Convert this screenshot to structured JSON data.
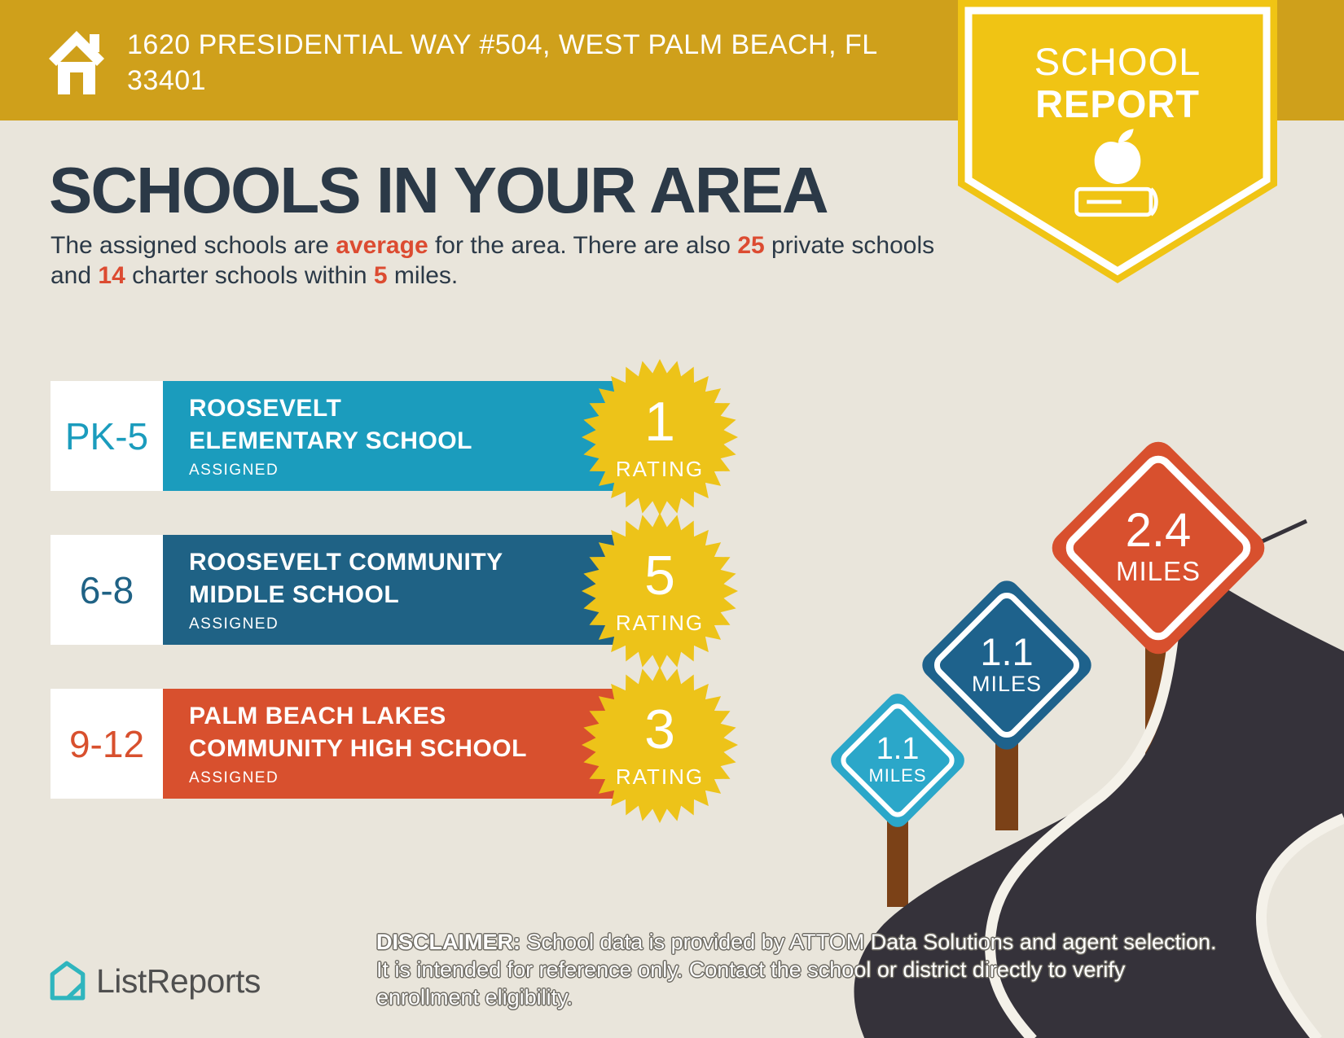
{
  "header": {
    "address": "1620 PRESIDENTIAL WAY #504, WEST PALM BEACH, FL 33401",
    "badge": {
      "line1": "SCHOOL",
      "line2": "REPORT"
    }
  },
  "title": "SCHOOLS IN YOUR AREA",
  "intro_segments": [
    {
      "t": "The assigned schools are ",
      "hl": false
    },
    {
      "t": "average",
      "hl": true
    },
    {
      "t": " for the area. There are also ",
      "hl": false
    },
    {
      "t": "25",
      "hl": true
    },
    {
      "t": " private schools and ",
      "hl": false
    },
    {
      "t": "14",
      "hl": true
    },
    {
      "t": " charter schools within ",
      "hl": false
    },
    {
      "t": "5",
      "hl": true
    },
    {
      "t": " miles.",
      "hl": false
    }
  ],
  "schools": [
    {
      "grades": "PK-5",
      "name_lines": [
        "ROOSEVELT",
        "ELEMENTARY SCHOOL"
      ],
      "status": "ASSIGNED",
      "rating": "1",
      "rating_label": "RATING",
      "color": "#1B9CBD"
    },
    {
      "grades": "6-8",
      "name_lines": [
        "ROOSEVELT COMMUNITY",
        "MIDDLE SCHOOL"
      ],
      "status": "ASSIGNED",
      "rating": "5",
      "rating_label": "RATING",
      "color": "#1F6285"
    },
    {
      "grades": "9-12",
      "name_lines": [
        "PALM BEACH LAKES",
        "COMMUNITY HIGH SCHOOL"
      ],
      "status": "ASSIGNED",
      "rating": "3",
      "rating_label": "RATING",
      "color": "#D8502E"
    }
  ],
  "signs": [
    {
      "value": "1.1",
      "label": "MILES",
      "color": "#2BA7C9"
    },
    {
      "value": "1.1",
      "label": "MILES",
      "color": "#1E628C"
    },
    {
      "value": "2.4",
      "label": "MILES",
      "color": "#D8502E"
    }
  ],
  "footer": {
    "logo_text": "ListReports",
    "disclaimer_label": "DISCLAIMER:",
    "disclaimer_rest": " School data is provided by ATTOM Data Solutions and agent selection. It is intended for reference only. Contact the school or district directly to verify enrollment eligibility."
  },
  "colors": {
    "banner_gold": "#CFA01B",
    "badge_yellow": "#F0C414",
    "starburst_yellow": "#EDC319",
    "background": "#E9E5DB",
    "accent_red": "#DC4B31",
    "heading_navy": "#2B3947",
    "road_gray": "#35323A",
    "road_line_white": "#F4F1E9",
    "post_brown": "#7B4117",
    "logo_teal": "#2FB5BE"
  }
}
